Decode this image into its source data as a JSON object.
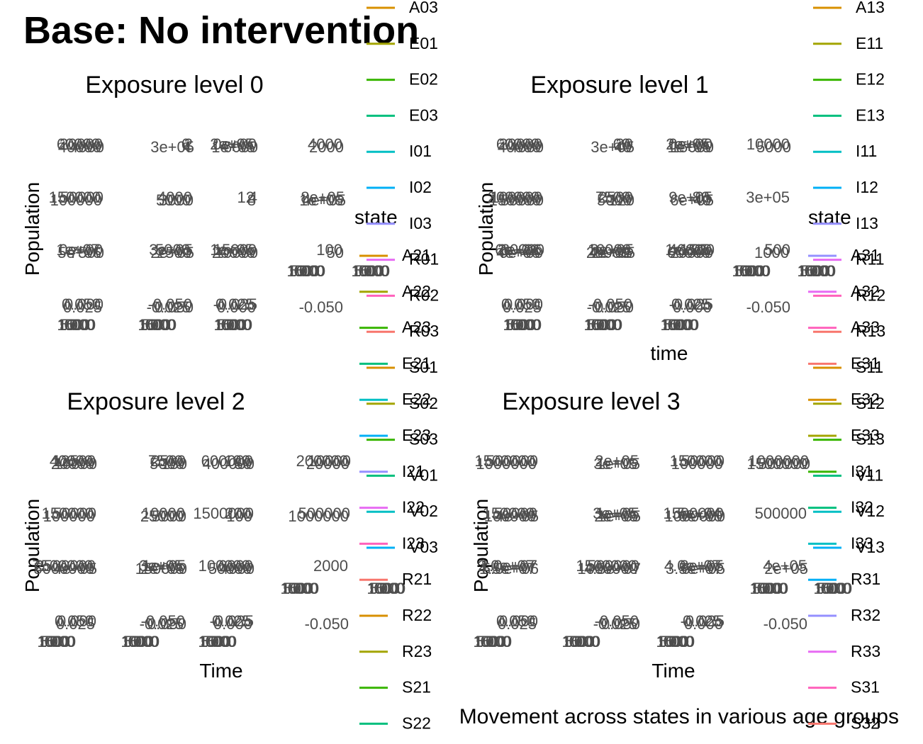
{
  "title": "Base: No intervention",
  "caption": "Movement across states in various age groups",
  "colors": {
    "text": "#000000",
    "tick": "#4d4d4d",
    "state_palette": [
      "#F8766D",
      "#D89000",
      "#A3A500",
      "#39B600",
      "#00BF7D",
      "#00BFC4",
      "#00B0F6",
      "#9590FF",
      "#E76BF3",
      "#FF62BC"
    ]
  },
  "chart_data": [
    {
      "type": "line",
      "title": "Exposure level 0",
      "ylabel": "Population",
      "xlabel": "",
      "grid": false,
      "facet_rows": [
        [
          "60000",
          "40000",
          "20000",
          "4000",
          "6",
          "4",
          "2",
          "3e+05",
          "2e+05",
          "1e+05",
          "0e+00",
          "6000",
          "4000",
          "2000"
        ],
        [
          "150000",
          "100000",
          "50000",
          "5000",
          "4000",
          "3000",
          "12",
          "8",
          "4",
          "1e+06",
          "8e+05",
          "4e+05"
        ],
        [
          "1e+07",
          "5e+06",
          "0e+00",
          "7500",
          "5000",
          "2500",
          "3e+05",
          "2e+05",
          "1e+05",
          "20000",
          "15000",
          "10000",
          "100",
          "50"
        ],
        [
          "0.050",
          "0.025",
          "0.000",
          "-0.025",
          "-0.050",
          "0.050",
          "0.025",
          "0.000",
          "-0.025",
          "-0.050"
        ]
      ],
      "x_ticks": [
        "0",
        "5000",
        "10000",
        "15000"
      ],
      "legend": {
        "title": "state",
        "position": "right",
        "entries": [
          "A03",
          "E01",
          "E02",
          "E03",
          "I01",
          "I02",
          "I03",
          "R01",
          "R02",
          "R03",
          "S01",
          "S02",
          "S03",
          "V01",
          "V02",
          "V03"
        ]
      }
    },
    {
      "type": "line",
      "title": "Exposure level 1",
      "ylabel": "Population",
      "xlabel": "time",
      "grid": false,
      "facet_rows": [
        [
          "60000",
          "40000",
          "20000",
          "4000",
          "60",
          "40",
          "20",
          "3e+05",
          "2e+05",
          "1e+05",
          "0e+00",
          "15000",
          "10000",
          "5000"
        ],
        [
          "200000",
          "150000",
          "100000",
          "50000",
          "7500",
          "5000",
          "2500",
          "120",
          "80",
          "40",
          "9e+05",
          "6e+05",
          "3e+05"
        ],
        [
          "6e+06",
          "4e+06",
          "2e+06",
          "0e+00",
          "30000",
          "20000",
          "10000",
          "4e+05",
          "3e+05",
          "2e+05",
          "1e+05",
          "60000",
          "40000",
          "20000",
          "1500",
          "1000",
          "500"
        ],
        [
          "0.050",
          "0.025",
          "0.000",
          "-0.025",
          "-0.050",
          "0.050",
          "0.025",
          "0.000",
          "-0.025",
          "-0.050"
        ]
      ],
      "x_ticks": [
        "0",
        "5000",
        "10000",
        "15000"
      ],
      "legend": {
        "title": "state",
        "position": "right",
        "entries": [
          "A13",
          "E11",
          "E12",
          "E13",
          "I11",
          "I12",
          "I13",
          "R11",
          "R12",
          "R13",
          "S11",
          "S12",
          "S13",
          "V11",
          "V12",
          "V13"
        ]
      }
    },
    {
      "type": "line",
      "title": "Exposure level 2",
      "ylabel": "Population",
      "xlabel": "Time",
      "grid": false,
      "facet_rows": [
        [
          "40000",
          "20000",
          "12500",
          "10000",
          "7500",
          "5000",
          "2500",
          "150",
          "100",
          "50",
          "600000",
          "400000",
          "200000",
          "20000",
          "10000"
        ],
        [
          "150000",
          "100000",
          "50000",
          "25000",
          "10000",
          "5000",
          "200",
          "100",
          "1500000",
          "1000000",
          "500000"
        ],
        [
          "7500000",
          "5000000",
          "2500000",
          "4e+05",
          "3e+05",
          "2e+05",
          "1e+05",
          "150000",
          "100000",
          "50000",
          "6000",
          "4000",
          "2000"
        ],
        [
          "0.050",
          "0.025",
          "0.000",
          "-0.025",
          "-0.050",
          "0.050",
          "0.025",
          "0.000",
          "-0.025",
          "-0.050"
        ]
      ],
      "x_ticks": [
        "0",
        "5000",
        "10000",
        "15000"
      ],
      "legend": {
        "title": "",
        "position": "right",
        "entries": [
          "A21",
          "A22",
          "A23",
          "E21",
          "E22",
          "E23",
          "I21",
          "I22",
          "I23",
          "R21",
          "R22",
          "R23",
          "S21",
          "S22"
        ]
      }
    },
    {
      "type": "line",
      "title": "Exposure level 3",
      "ylabel": "Population",
      "xlabel": "Time",
      "grid": false,
      "facet_rows": [
        [
          "1500000",
          "1000000",
          "500000",
          "3e+05",
          "2e+05",
          "1e+05",
          "150000",
          "100000",
          "50000",
          "1500000",
          "1000000",
          "500000"
        ],
        [
          "150000",
          "100000",
          "50000",
          "4e+05",
          "3e+05",
          "2e+05",
          "1e+05",
          "1e+05",
          "5e+04",
          "0e+00",
          "1500000",
          "1000000",
          "500000"
        ],
        [
          "2.0e+07",
          "1.5e+07",
          "1.0e+07",
          "5.0e+06",
          "1500000",
          "1000000",
          "500000",
          "4.5e+07",
          "4.0e+07",
          "3.5e+07",
          "8e+05",
          "6e+05",
          "4e+05",
          "2e+05"
        ],
        [
          "0.050",
          "0.025",
          "0.000",
          "-0.025",
          "-0.050",
          "0.050",
          "0.025",
          "0.000",
          "-0.025",
          "-0.050"
        ]
      ],
      "x_ticks": [
        "0",
        "5000",
        "10000",
        "15000"
      ],
      "legend": {
        "title": "state",
        "position": "right",
        "entries": [
          "A13",
          "E11",
          "E12",
          "E13",
          "I11",
          "I12",
          "I13",
          "R11",
          "R12",
          "R13",
          "S11",
          "S12",
          "S13",
          "V11",
          "V12",
          "V13",
          "A31",
          "A32",
          "A33",
          "E31",
          "E32",
          "E33",
          "I31",
          "I32",
          "I33",
          "R31",
          "R32",
          "R33",
          "S31",
          "S32"
        ]
      }
    }
  ]
}
